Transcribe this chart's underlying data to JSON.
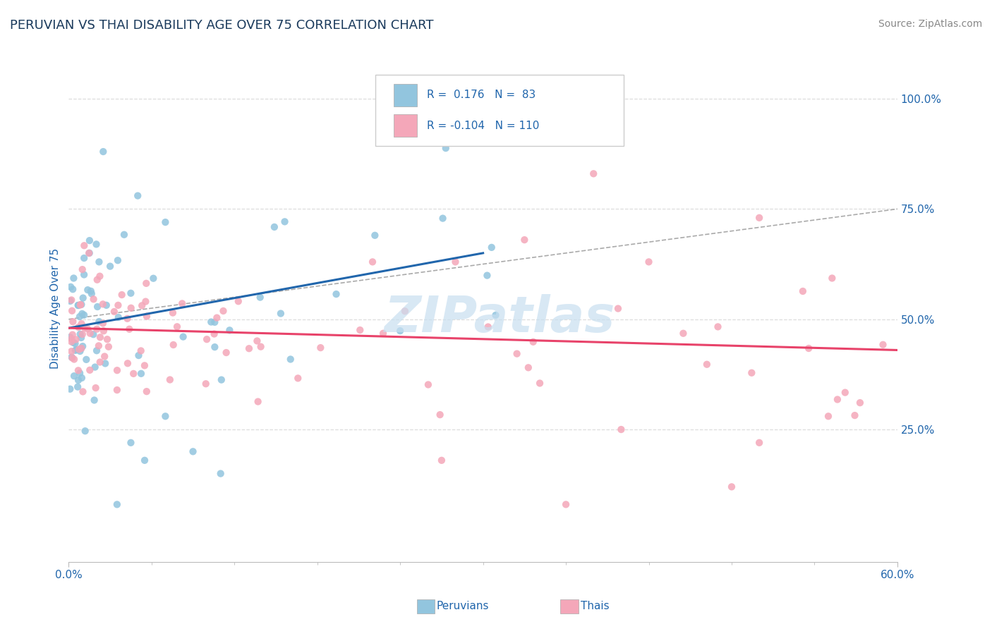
{
  "title": "PERUVIAN VS THAI DISABILITY AGE OVER 75 CORRELATION CHART",
  "source": "Source: ZipAtlas.com",
  "ylabel": "Disability Age Over 75",
  "ytick_labels": [
    "25.0%",
    "50.0%",
    "75.0%",
    "100.0%"
  ],
  "ytick_values": [
    25,
    50,
    75,
    100
  ],
  "xlim": [
    0,
    60
  ],
  "ylim": [
    -5,
    110
  ],
  "peruvian_color": "#92C5DE",
  "thai_color": "#F4A7B9",
  "peruvian_line_color": "#2166AC",
  "thai_line_color": "#E8436A",
  "dashed_line_color": "#AAAAAA",
  "title_color": "#1a3a5c",
  "axis_label_color": "#2166AC",
  "grid_color": "#DDDDDD",
  "watermark_color": "#C8DFF0",
  "legend_r1_text": "R =  0.176   N =  83",
  "legend_r2_text": "R = -0.104   N = 110",
  "peru_trend_x0": 0,
  "peru_trend_y0": 48,
  "peru_trend_x1": 30,
  "peru_trend_y1": 65,
  "thai_trend_x0": 0,
  "thai_trend_y0": 48,
  "thai_trend_x1": 60,
  "thai_trend_y1": 43,
  "dash_x0": 0,
  "dash_y0": 50,
  "dash_x1": 60,
  "dash_y1": 75
}
